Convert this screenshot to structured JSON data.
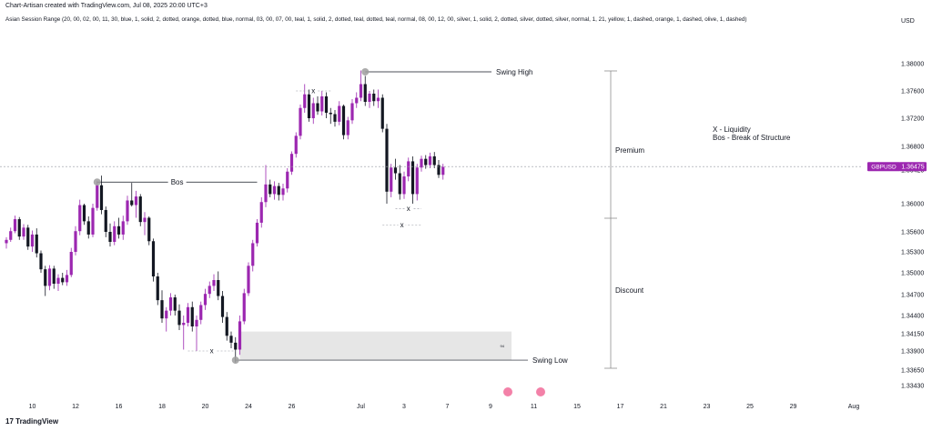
{
  "header": {
    "line1": "Chart-Artisan created with TradingView.com, Jul 08, 2025 20:00 UTC+3",
    "line2": "Asian Session Range (20, 00, 02, 00, 11, 30, blue, 1, solid, 2, dotted, orange, dotted, blue, normal, 03, 00, 07, 00, teal, 1, solid, 2, dotted, teal, dotted, teal, normal, 08, 00, 12, 00, silver, 1, solid, 2, dotted, silver, dotted, silver, normal, 1, 21, yellow, 1, dashed, orange, 1, dashed, olive, 1, dashed)",
    "currency": "USD",
    "footer": "TradingView"
  },
  "colors": {
    "bull": "#9c27b0",
    "bear": "#131722",
    "badge": "#9c27b0"
  },
  "chart_data": {
    "type": "candlestick",
    "symbol": "GBPUSD",
    "last_price": "1.36475",
    "last_value": 1.36475,
    "y_ticks": [
      "1.38000",
      "1.37600",
      "1.37200",
      "1.36800",
      "1.36420",
      "1.36000",
      "1.35600",
      "1.35300",
      "1.35000",
      "1.34700",
      "1.34400",
      "1.34150",
      "1.33900",
      "1.33650",
      "1.33430"
    ],
    "y_tick_values": [
      1.38,
      1.376,
      1.372,
      1.368,
      1.3642,
      1.36,
      1.356,
      1.353,
      1.35,
      1.347,
      1.344,
      1.3415,
      1.339,
      1.3365,
      1.3343
    ],
    "x_ticks": [
      {
        "label": "10",
        "idx": 6
      },
      {
        "label": "12",
        "idx": 16
      },
      {
        "label": "16",
        "idx": 26
      },
      {
        "label": "18",
        "idx": 36
      },
      {
        "label": "20",
        "idx": 46
      },
      {
        "label": "24",
        "idx": 56
      },
      {
        "label": "26",
        "idx": 66
      },
      {
        "label": "Jul",
        "idx": 82
      },
      {
        "label": "3",
        "idx": 92
      },
      {
        "label": "7",
        "idx": 102
      },
      {
        "label": "9",
        "idx": 112
      },
      {
        "label": "11",
        "idx": 122
      },
      {
        "label": "15",
        "idx": 132
      },
      {
        "label": "17",
        "idx": 142
      },
      {
        "label": "21",
        "idx": 152
      },
      {
        "label": "23",
        "idx": 162
      },
      {
        "label": "25",
        "idx": 172
      },
      {
        "label": "29",
        "idx": 182
      },
      {
        "label": "Aug",
        "idx": 196
      }
    ],
    "candles": [
      [
        1.3543,
        1.3552,
        1.3535,
        1.3548
      ],
      [
        1.3548,
        1.3566,
        1.3545,
        1.3561
      ],
      [
        1.3561,
        1.3583,
        1.3558,
        1.3578
      ],
      [
        1.3578,
        1.3581,
        1.3548,
        1.3553
      ],
      [
        1.3553,
        1.3571,
        1.3548,
        1.3566
      ],
      [
        1.3566,
        1.357,
        1.3533,
        1.3538
      ],
      [
        1.3538,
        1.3562,
        1.353,
        1.3556
      ],
      [
        1.3556,
        1.3565,
        1.3522,
        1.3528
      ],
      [
        1.3528,
        1.3532,
        1.35,
        1.3505
      ],
      [
        1.3505,
        1.351,
        1.3468,
        1.3482
      ],
      [
        1.3482,
        1.3511,
        1.3476,
        1.3506
      ],
      [
        1.3506,
        1.351,
        1.3478,
        1.3485
      ],
      [
        1.3485,
        1.3498,
        1.3475,
        1.3493
      ],
      [
        1.3493,
        1.35,
        1.3483,
        1.3487
      ],
      [
        1.3487,
        1.3504,
        1.3482,
        1.3497
      ],
      [
        1.3497,
        1.3536,
        1.3494,
        1.353
      ],
      [
        1.353,
        1.3568,
        1.3525,
        1.3561
      ],
      [
        1.3561,
        1.3605,
        1.3555,
        1.3598
      ],
      [
        1.3598,
        1.36,
        1.357,
        1.3575
      ],
      [
        1.3575,
        1.3582,
        1.355,
        1.3556
      ],
      [
        1.3556,
        1.36,
        1.3552,
        1.3594
      ],
      [
        1.3594,
        1.3628,
        1.359,
        1.3623
      ],
      [
        1.3623,
        1.3635,
        1.3585,
        1.3591
      ],
      [
        1.3591,
        1.3596,
        1.3552,
        1.356
      ],
      [
        1.356,
        1.3572,
        1.3538,
        1.3545
      ],
      [
        1.3545,
        1.3575,
        1.354,
        1.3568
      ],
      [
        1.3568,
        1.358,
        1.355,
        1.3556
      ],
      [
        1.3556,
        1.3583,
        1.3548,
        1.3575
      ],
      [
        1.3575,
        1.361,
        1.357,
        1.3604
      ],
      [
        1.3604,
        1.3626,
        1.3596,
        1.3598
      ],
      [
        1.3598,
        1.3616,
        1.358,
        1.3609
      ],
      [
        1.3609,
        1.3612,
        1.3568,
        1.3574
      ],
      [
        1.3574,
        1.3588,
        1.3555,
        1.358
      ],
      [
        1.358,
        1.3582,
        1.354,
        1.3546
      ],
      [
        1.3546,
        1.355,
        1.3488,
        1.3495
      ],
      [
        1.3495,
        1.35,
        1.3455,
        1.3462
      ],
      [
        1.3462,
        1.3476,
        1.343,
        1.3436
      ],
      [
        1.3436,
        1.3452,
        1.3418,
        1.3447
      ],
      [
        1.3447,
        1.3472,
        1.344,
        1.3466
      ],
      [
        1.3466,
        1.347,
        1.344,
        1.3447
      ],
      [
        1.3447,
        1.3456,
        1.342,
        1.3427
      ],
      [
        1.3427,
        1.344,
        1.3392,
        1.343
      ],
      [
        1.343,
        1.3458,
        1.3425,
        1.3452
      ],
      [
        1.3452,
        1.346,
        1.3418,
        1.3425
      ],
      [
        1.3425,
        1.344,
        1.339,
        1.3434
      ],
      [
        1.3434,
        1.346,
        1.3428,
        1.3455
      ],
      [
        1.3455,
        1.3478,
        1.3448,
        1.3471
      ],
      [
        1.3471,
        1.3488,
        1.3465,
        1.3482
      ],
      [
        1.3482,
        1.3498,
        1.3475,
        1.349
      ],
      [
        1.349,
        1.3502,
        1.3462,
        1.3468
      ],
      [
        1.3468,
        1.3475,
        1.343,
        1.3438
      ],
      [
        1.3438,
        1.3445,
        1.3405,
        1.3412
      ],
      [
        1.3412,
        1.3418,
        1.3394,
        1.3402
      ],
      [
        1.3402,
        1.341,
        1.3375,
        1.3392
      ],
      [
        1.3392,
        1.344,
        1.3385,
        1.3432
      ],
      [
        1.3432,
        1.3478,
        1.3428,
        1.3472
      ],
      [
        1.3472,
        1.3515,
        1.3468,
        1.351
      ],
      [
        1.351,
        1.3548,
        1.3502,
        1.3543
      ],
      [
        1.3543,
        1.3578,
        1.3538,
        1.3573
      ],
      [
        1.3573,
        1.3608,
        1.3566,
        1.3602
      ],
      [
        1.3602,
        1.365,
        1.3595,
        1.3624
      ],
      [
        1.3624,
        1.363,
        1.3608,
        1.3612
      ],
      [
        1.3612,
        1.3628,
        1.3605,
        1.3622
      ],
      [
        1.3622,
        1.3626,
        1.3604,
        1.3611
      ],
      [
        1.3611,
        1.3625,
        1.3604,
        1.3619
      ],
      [
        1.3619,
        1.3645,
        1.3614,
        1.364
      ],
      [
        1.364,
        1.3672,
        1.3636,
        1.3668
      ],
      [
        1.3668,
        1.37,
        1.3662,
        1.3695
      ],
      [
        1.3695,
        1.374,
        1.369,
        1.3735
      ],
      [
        1.3735,
        1.377,
        1.3728,
        1.3755
      ],
      [
        1.3755,
        1.3762,
        1.3715,
        1.372
      ],
      [
        1.372,
        1.375,
        1.3712,
        1.3742
      ],
      [
        1.3742,
        1.3752,
        1.3725,
        1.373
      ],
      [
        1.373,
        1.376,
        1.3724,
        1.3752
      ],
      [
        1.3752,
        1.3758,
        1.372,
        1.3728
      ],
      [
        1.3728,
        1.3735,
        1.3712,
        1.3726
      ],
      [
        1.3726,
        1.3732,
        1.3708,
        1.3715
      ],
      [
        1.3715,
        1.3745,
        1.371,
        1.3738
      ],
      [
        1.3738,
        1.374,
        1.369,
        1.3696
      ],
      [
        1.3696,
        1.3722,
        1.369,
        1.3717
      ],
      [
        1.3717,
        1.3748,
        1.3712,
        1.3742
      ],
      [
        1.3742,
        1.3758,
        1.3735,
        1.375
      ],
      [
        1.375,
        1.379,
        1.3745,
        1.377
      ],
      [
        1.377,
        1.3782,
        1.3738,
        1.3744
      ],
      [
        1.3744,
        1.376,
        1.3735,
        1.3756
      ],
      [
        1.3756,
        1.3762,
        1.3738,
        1.3745
      ],
      [
        1.3745,
        1.3762,
        1.3735,
        1.375
      ],
      [
        1.375,
        1.3755,
        1.37,
        1.3705
      ],
      [
        1.3705,
        1.3712,
        1.36,
        1.3615
      ],
      [
        1.3615,
        1.3652,
        1.3608,
        1.3646
      ],
      [
        1.3646,
        1.366,
        1.363,
        1.3638
      ],
      [
        1.3638,
        1.365,
        1.3605,
        1.3612
      ],
      [
        1.3612,
        1.364,
        1.3606,
        1.3634
      ],
      [
        1.3634,
        1.3662,
        1.3628,
        1.3656
      ],
      [
        1.3656,
        1.3664,
        1.36,
        1.3612
      ],
      [
        1.3612,
        1.3652,
        1.3604,
        1.3646
      ],
      [
        1.3646,
        1.3665,
        1.364,
        1.366
      ],
      [
        1.366,
        1.3666,
        1.3644,
        1.365
      ],
      [
        1.365,
        1.367,
        1.3645,
        1.3664
      ],
      [
        1.3664,
        1.3671,
        1.3645,
        1.365
      ],
      [
        1.365,
        1.3658,
        1.3632,
        1.3636
      ],
      [
        1.3636,
        1.3652,
        1.363,
        1.3647
      ]
    ],
    "annotations": {
      "swing_high": {
        "label": "Swing High",
        "price": 1.3788,
        "from_idx": 83,
        "to_x": 540
      },
      "swing_low": {
        "label": "Swing Low",
        "price": 1.3378,
        "from_idx": 53,
        "to_x": 580
      },
      "bos": {
        "label": "Bos",
        "price": 1.3627,
        "from_idx": 21,
        "to_idx": 58
      },
      "liquidity_marks": [
        {
          "label": "x",
          "price": 1.339,
          "from_idx": 42,
          "to_idx": 53
        },
        {
          "label": "x",
          "price": 1.376,
          "from_idx": 67,
          "to_idx": 75
        },
        {
          "label": "x",
          "price": 1.3593,
          "from_idx": 90,
          "to_idx": 96
        },
        {
          "label": "x",
          "price": 1.357,
          "from_idx": 87,
          "to_idx": 96
        }
      ],
      "box": {
        "from_idx": 54,
        "to_x": 562,
        "top": 1.3418,
        "bottom": 1.3378,
        "label": "94"
      },
      "premium_label": "Premium",
      "discount_label": "Discount",
      "legend_line1": "X - Liquidity",
      "legend_line2": "Bos - Break of Structure"
    }
  }
}
